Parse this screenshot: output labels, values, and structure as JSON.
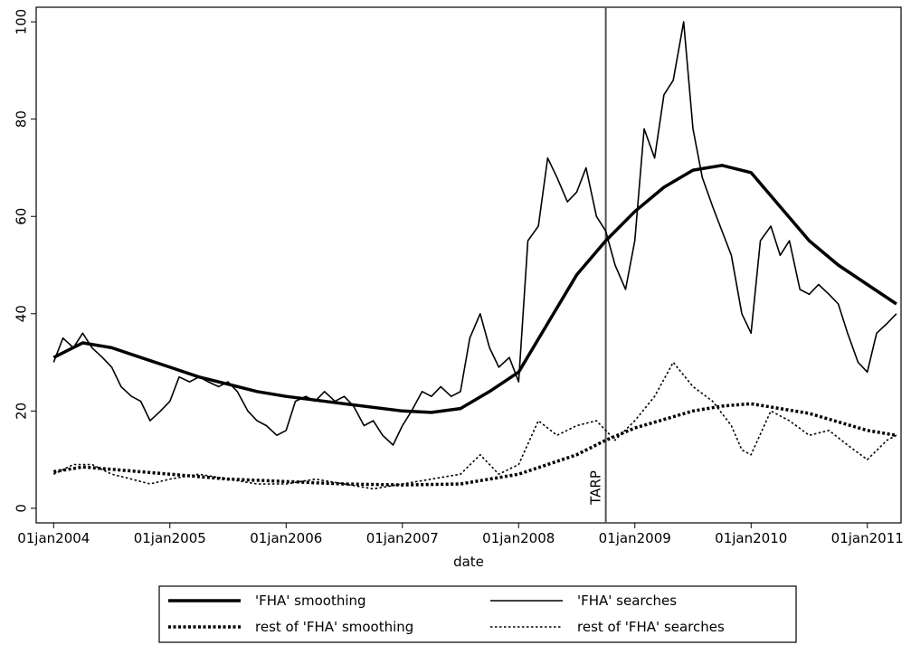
{
  "chart_data": {
    "type": "line",
    "xlabel": "date",
    "xlim": [
      2003.85,
      2011.29
    ],
    "ylim": [
      -3,
      103
    ],
    "xticks": [
      {
        "value": 2004,
        "label": "01jan2004"
      },
      {
        "value": 2005,
        "label": "01jan2005"
      },
      {
        "value": 2006,
        "label": "01jan2006"
      },
      {
        "value": 2007,
        "label": "01jan2007"
      },
      {
        "value": 2008,
        "label": "01jan2008"
      },
      {
        "value": 2009,
        "label": "01jan2009"
      },
      {
        "value": 2010,
        "label": "01jan2010"
      },
      {
        "value": 2011,
        "label": "01jan2011"
      }
    ],
    "yticks": [
      0,
      20,
      40,
      60,
      80,
      100
    ],
    "grid": false,
    "legend": "bottom",
    "annotations": [
      {
        "text": "TARP",
        "x": 2008.75
      }
    ],
    "series": [
      {
        "name": "'FHA' smoothing",
        "color": "#000000",
        "linestyle": "solid",
        "linewidth": 3.5,
        "x": [
          2004,
          2004.25,
          2004.5,
          2004.75,
          2005,
          2005.25,
          2005.5,
          2005.75,
          2006,
          2006.5,
          2007,
          2007.25,
          2007.5,
          2007.75,
          2008,
          2008.25,
          2008.5,
          2008.75,
          2009,
          2009.25,
          2009.5,
          2009.75,
          2010,
          2010.25,
          2010.5,
          2010.75,
          2011,
          2011.25
        ],
        "values": [
          31,
          34,
          33,
          31,
          29,
          27,
          25.5,
          24,
          23,
          21.5,
          20,
          19.7,
          20.5,
          24,
          28,
          38,
          48,
          55,
          61,
          66,
          69.5,
          70.5,
          69,
          62,
          55,
          50,
          46,
          42
        ]
      },
      {
        "name": "'FHA' searches",
        "color": "#000000",
        "linestyle": "solid",
        "linewidth": 1.6,
        "x": [
          2004,
          2004.08,
          2004.17,
          2004.25,
          2004.33,
          2004.42,
          2004.5,
          2004.58,
          2004.67,
          2004.75,
          2004.83,
          2004.92,
          2005,
          2005.08,
          2005.17,
          2005.25,
          2005.33,
          2005.42,
          2005.5,
          2005.58,
          2005.67,
          2005.75,
          2005.83,
          2005.92,
          2006,
          2006.08,
          2006.17,
          2006.25,
          2006.33,
          2006.42,
          2006.5,
          2006.58,
          2006.67,
          2006.75,
          2006.83,
          2006.92,
          2007,
          2007.08,
          2007.17,
          2007.25,
          2007.33,
          2007.42,
          2007.5,
          2007.58,
          2007.67,
          2007.75,
          2007.83,
          2007.92,
          2008,
          2008.08,
          2008.17,
          2008.25,
          2008.33,
          2008.42,
          2008.5,
          2008.58,
          2008.67,
          2008.75,
          2008.83,
          2008.92,
          2009,
          2009.08,
          2009.17,
          2009.25,
          2009.33,
          2009.42,
          2009.5,
          2009.58,
          2009.67,
          2009.75,
          2009.83,
          2009.92,
          2010,
          2010.08,
          2010.17,
          2010.25,
          2010.33,
          2010.42,
          2010.5,
          2010.58,
          2010.67,
          2010.75,
          2010.83,
          2010.92,
          2011,
          2011.08,
          2011.17,
          2011.25
        ],
        "values": [
          30,
          35,
          33,
          36,
          33,
          31,
          29,
          25,
          23,
          22,
          18,
          20,
          22,
          27,
          26,
          27,
          26,
          25,
          26,
          24,
          20,
          18,
          17,
          15,
          16,
          22,
          23,
          22,
          24,
          22,
          23,
          21,
          17,
          18,
          15,
          13,
          17,
          20,
          24,
          23,
          25,
          23,
          24,
          35,
          40,
          33,
          29,
          31,
          26,
          55,
          58,
          72,
          68,
          63,
          65,
          70,
          60,
          57,
          50,
          45,
          55,
          78,
          72,
          85,
          88,
          100,
          78,
          68,
          62,
          57,
          52,
          40,
          36,
          55,
          58,
          52,
          55,
          45,
          44,
          46,
          44,
          42,
          36,
          30,
          28,
          36,
          38,
          40
        ]
      },
      {
        "name": "rest of 'FHA' smoothing",
        "color": "#000000",
        "linestyle": "dotted",
        "linewidth": 3.5,
        "x": [
          2004,
          2004.25,
          2004.5,
          2005,
          2005.5,
          2006,
          2006.5,
          2007,
          2007.5,
          2008,
          2008.5,
          2008.75,
          2009,
          2009.5,
          2009.75,
          2010,
          2010.5,
          2011,
          2011.25
        ],
        "values": [
          7.5,
          8.5,
          8,
          7,
          6,
          5.5,
          5,
          4.8,
          5,
          7,
          11,
          14,
          16.5,
          20,
          21,
          21.5,
          19.5,
          16,
          15
        ]
      },
      {
        "name": "rest of 'FHA' searches",
        "color": "#000000",
        "linestyle": "dotted",
        "linewidth": 1.6,
        "x": [
          2004,
          2004.17,
          2004.33,
          2004.5,
          2004.67,
          2004.83,
          2005,
          2005.25,
          2005.5,
          2005.75,
          2006,
          2006.25,
          2006.5,
          2006.75,
          2007,
          2007.25,
          2007.5,
          2007.67,
          2007.83,
          2008,
          2008.17,
          2008.33,
          2008.5,
          2008.67,
          2008.83,
          2009,
          2009.17,
          2009.33,
          2009.5,
          2009.67,
          2009.83,
          2009.92,
          2010,
          2010.17,
          2010.33,
          2010.5,
          2010.67,
          2010.83,
          2011,
          2011.17,
          2011.25
        ],
        "values": [
          7,
          9,
          9,
          7,
          6,
          5,
          6,
          7,
          6,
          5,
          5,
          6,
          5,
          4,
          5,
          6,
          7,
          11,
          7,
          9,
          18,
          15,
          17,
          18,
          14,
          18,
          23,
          30,
          25,
          22,
          17,
          12,
          11,
          20,
          18,
          15,
          16,
          13,
          10,
          14,
          15
        ]
      }
    ]
  }
}
